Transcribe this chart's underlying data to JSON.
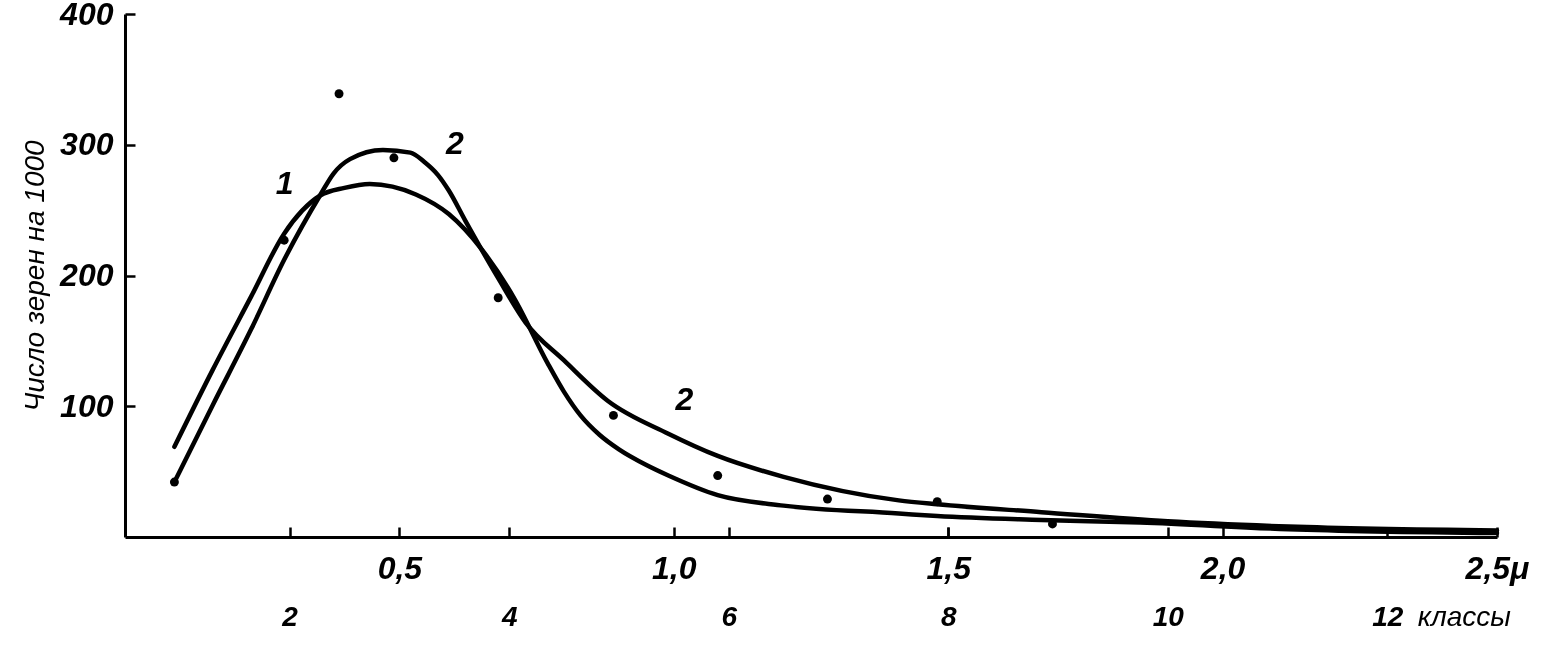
{
  "chart_data": {
    "type": "line",
    "ylabel": "Число зерен на 1000",
    "x2label": "классы",
    "xlim": [
      0,
      2.5
    ],
    "xticks": [
      {
        "value": 0.5,
        "label": "0,5"
      },
      {
        "value": 1,
        "label": "1,0"
      },
      {
        "value": 1.5,
        "label": "1,5"
      },
      {
        "value": 2,
        "label": "2,0"
      },
      {
        "value": 2.5,
        "label": "2,5μ"
      }
    ],
    "ylim": [
      0,
      400
    ],
    "yticks": [
      100,
      200,
      300,
      400
    ],
    "x2lim": [
      0.5,
      13
    ],
    "x2ticks": [
      2,
      4,
      6,
      8,
      10,
      12
    ],
    "annotations": [
      {
        "text": "2",
        "x": 0.99,
        "y": 80
      }
    ],
    "series": [
      {
        "name": "1",
        "color": "#000000",
        "x": [
          0.09,
          0.16,
          0.23,
          0.29,
          0.355,
          0.4,
          0.446,
          0.53,
          0.59,
          0.65,
          0.71,
          0.77,
          0.8,
          0.83,
          0.865,
          0.9,
          0.95,
          0.99,
          1.08,
          1.2,
          1.41,
          1.48,
          1.67,
          1.85,
          2.12,
          2.5
        ],
        "values": [
          69,
          128,
          184,
          232,
          261,
          267,
          270,
          262,
          247,
          220,
          182,
          133,
          111,
          93,
          78,
          67,
          55,
          47,
          32,
          24,
          18,
          16,
          13,
          11,
          6,
          3
        ]
      },
      {
        "name": "2",
        "color": "#000000",
        "x": [
          0.09,
          0.16,
          0.23,
          0.29,
          0.355,
          0.38,
          0.41,
          0.47,
          0.52,
          0.545,
          0.57,
          0.59,
          0.62,
          0.68,
          0.73,
          0.8,
          0.88,
          0.99,
          1.08,
          1.2,
          1.41,
          1.48,
          1.67,
          1.9,
          2.12,
          2.5
        ],
        "values": [
          42,
          101,
          159,
          212,
          261,
          278,
          289,
          296,
          294,
          287,
          277,
          265,
          242,
          198,
          164,
          135,
          104,
          79,
          62,
          46,
          28,
          25,
          19,
          12,
          8,
          5
        ]
      },
      {
        "type": "scatter",
        "marker": "circle",
        "color": "#000000",
        "x": [
          0.09,
          0.29,
          0.39,
          0.49,
          0.68,
          0.89,
          1.08,
          1.28,
          1.48,
          1.69
        ],
        "values": [
          42,
          227,
          339,
          290,
          183,
          93,
          47,
          29,
          27,
          10
        ]
      }
    ]
  }
}
